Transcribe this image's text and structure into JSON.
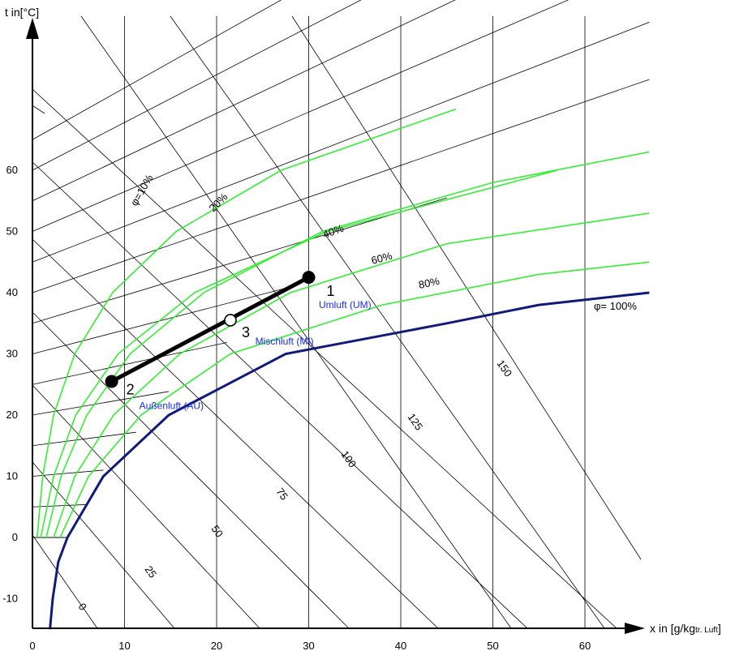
{
  "chart_data": {
    "type": "line",
    "title": "",
    "xlabel": "x in [g/kg",
    "xlabel_sub": "tr. Luft",
    "xlabel_close": "]",
    "ylabel": "t in[°C]",
    "xlim": [
      0,
      67
    ],
    "ylim": [
      -15,
      85
    ],
    "x_ticks": [
      "0",
      "10",
      "20",
      "30",
      "40",
      "50",
      "60"
    ],
    "y_ticks": [
      "-10",
      "0",
      "10",
      "20",
      "30",
      "40",
      "50",
      "60"
    ],
    "grid": true,
    "phi_curves": [
      {
        "label": "φ=10%",
        "points": [
          [
            0.5,
            0
          ],
          [
            1.12,
            10
          ],
          [
            2.3,
            20
          ],
          [
            4.6,
            30
          ],
          [
            8.7,
            40
          ],
          [
            15.6,
            50
          ],
          [
            27,
            60
          ],
          [
            46,
            70
          ]
        ]
      },
      {
        "label": "20%",
        "points": [
          [
            0.9,
            0
          ],
          [
            2.3,
            10
          ],
          [
            4.7,
            20
          ],
          [
            9.3,
            30
          ],
          [
            17.6,
            40
          ],
          [
            32,
            50
          ],
          [
            57,
            60
          ]
        ]
      },
      {
        "label": "40%",
        "points": [
          [
            1.5,
            0
          ],
          [
            3.1,
            10
          ],
          [
            5.9,
            20
          ],
          [
            10.6,
            30
          ],
          [
            18.6,
            40
          ],
          [
            31.5,
            50
          ],
          [
            50,
            58
          ],
          [
            67,
            63
          ]
        ]
      },
      {
        "label": "60%",
        "points": [
          [
            2.3,
            0
          ],
          [
            4.6,
            10
          ],
          [
            8.8,
            20
          ],
          [
            16,
            30
          ],
          [
            28,
            40
          ],
          [
            45,
            48
          ],
          [
            67,
            53
          ]
        ]
      },
      {
        "label": "80%",
        "points": [
          [
            3,
            0
          ],
          [
            6.1,
            10
          ],
          [
            11.8,
            20
          ],
          [
            21.5,
            30
          ],
          [
            38,
            38
          ],
          [
            55,
            43
          ],
          [
            67,
            45
          ]
        ]
      },
      {
        "label": "φ= 100%",
        "points": [
          [
            3.8,
            0
          ],
          [
            7.7,
            10
          ],
          [
            14.8,
            20
          ],
          [
            27.5,
            30
          ],
          [
            45,
            35
          ],
          [
            55,
            38
          ],
          [
            67,
            40
          ]
        ]
      }
    ],
    "enthalpy_lines": {
      "labels": [
        "0",
        "25",
        "50",
        "75",
        "100",
        "125",
        "150"
      ],
      "values": [
        0,
        25,
        50,
        75,
        100,
        125,
        150
      ]
    },
    "mix_line": {
      "points": [
        {
          "label": "2",
          "x": 8.6,
          "t": 25.5
        },
        {
          "label": "3",
          "x": 21.5,
          "t": 35.5
        },
        {
          "label": "1",
          "x": 30,
          "t": 42.5
        }
      ]
    },
    "annotations": [
      {
        "text": "Umluft (UM)",
        "x": 31.1,
        "t": 37.5
      },
      {
        "text": "Mischluft (MI)",
        "x": 24.2,
        "t": 31.5
      },
      {
        "text": "Außenluft (AU)",
        "x": 11.6,
        "t": 21.0
      }
    ],
    "colors": {
      "phi_curve": "#33ee33",
      "saturation": "#101a7a",
      "grid": "#000000",
      "annotation": "#1a2aee",
      "mix_line": "#000000"
    }
  }
}
